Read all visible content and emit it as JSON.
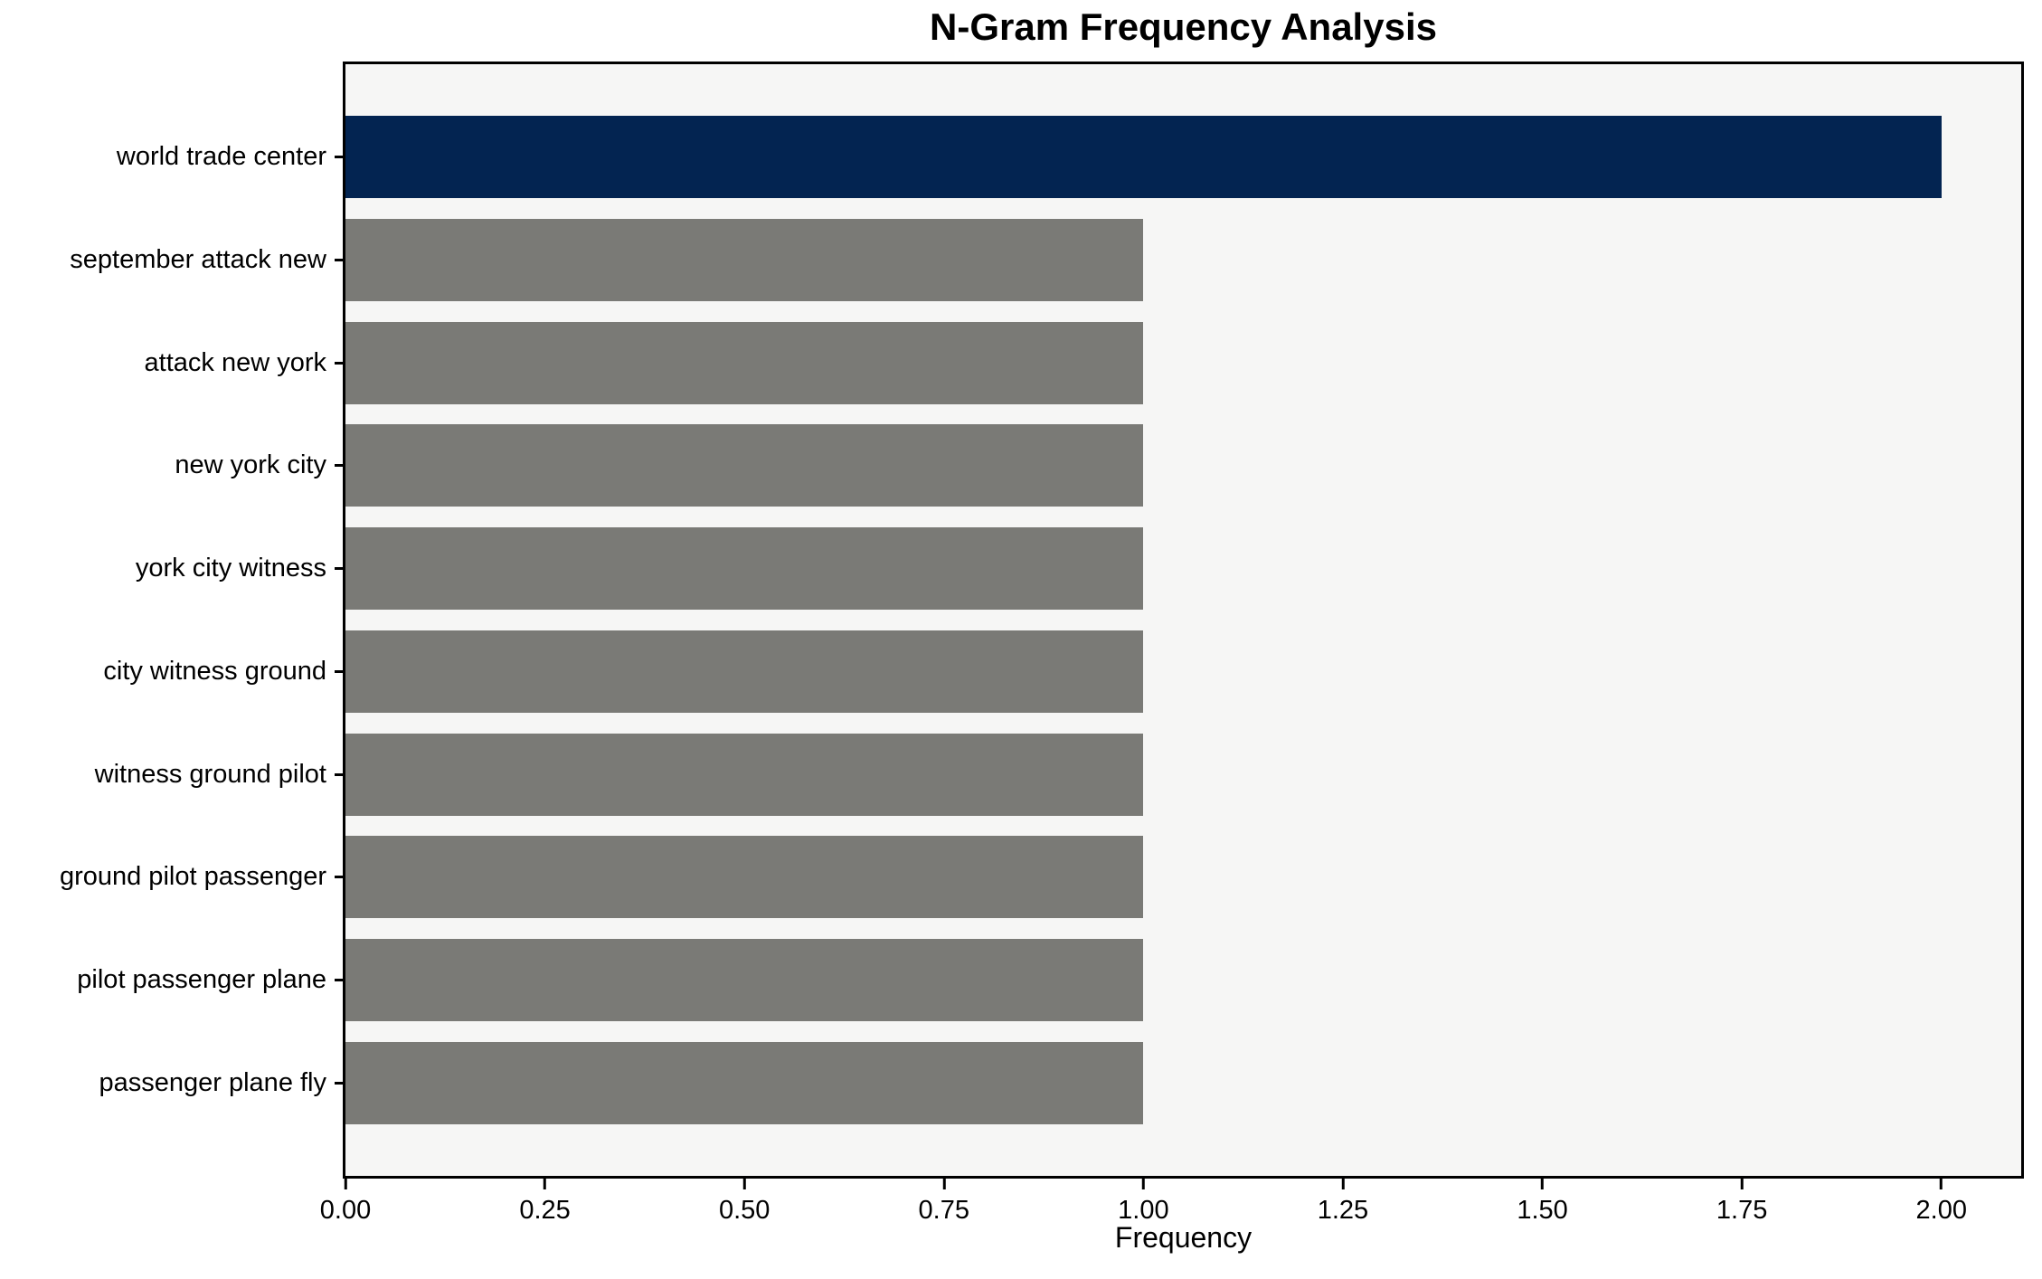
{
  "chart_data": {
    "type": "bar",
    "orientation": "horizontal",
    "title": "N-Gram Frequency Analysis",
    "xlabel": "Frequency",
    "ylabel": "",
    "categories": [
      "world trade center",
      "september attack new",
      "attack new york",
      "new york city",
      "york city witness",
      "city witness ground",
      "witness ground pilot",
      "ground pilot passenger",
      "pilot passenger plane",
      "passenger plane fly"
    ],
    "values": [
      2,
      1,
      1,
      1,
      1,
      1,
      1,
      1,
      1,
      1
    ],
    "highlight_index": 0,
    "xlim": [
      0,
      2.1
    ],
    "x_ticks": [
      {
        "value": 0.0,
        "label": "0.00"
      },
      {
        "value": 0.25,
        "label": "0.25"
      },
      {
        "value": 0.5,
        "label": "0.50"
      },
      {
        "value": 0.75,
        "label": "0.75"
      },
      {
        "value": 1.0,
        "label": "1.00"
      },
      {
        "value": 1.25,
        "label": "1.25"
      },
      {
        "value": 1.5,
        "label": "1.50"
      },
      {
        "value": 1.75,
        "label": "1.75"
      },
      {
        "value": 2.0,
        "label": "2.00"
      }
    ],
    "grid": false,
    "legend": null,
    "bar_height_fraction": 0.8,
    "colors": {
      "highlight_bar": "#032451",
      "bar": "#7a7a76",
      "plot_background": "#f6f6f5",
      "figure_background": "#ffffff",
      "spine": "#000000",
      "text": "#000000"
    }
  }
}
